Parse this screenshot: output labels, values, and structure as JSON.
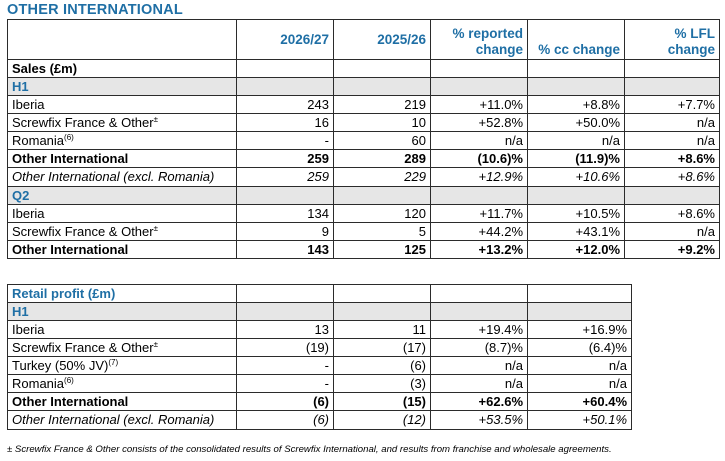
{
  "title": "OTHER INTERNATIONAL",
  "sales": {
    "columns": [
      "2026/27",
      "2025/26",
      "% reported change",
      "% cc change",
      "% LFL change"
    ],
    "caption": "Sales (£m)",
    "h1_label": "H1",
    "h1_rows": [
      {
        "label": "Iberia",
        "sup": "",
        "v": [
          "243",
          "219",
          "+11.0%",
          "+8.8%",
          "+7.7%"
        ]
      },
      {
        "label": "Screwfix France & Other",
        "sup": "±",
        "v": [
          "16",
          "10",
          "+52.8%",
          "+50.0%",
          "n/a"
        ]
      },
      {
        "label": "Romania",
        "sup": "(6)",
        "v": [
          "-",
          "60",
          "n/a",
          "n/a",
          "n/a"
        ]
      },
      {
        "label": "Other International",
        "sup": "",
        "v": [
          "259",
          "289",
          "(10.6)%",
          "(11.9)%",
          "+8.6%"
        ]
      },
      {
        "label": "Other International (excl. Romania)",
        "sup": "",
        "v": [
          "259",
          "229",
          "+12.9%",
          "+10.6%",
          "+8.6%"
        ]
      }
    ],
    "q2_label": "Q2",
    "q2_rows": [
      {
        "label": "Iberia",
        "sup": "",
        "v": [
          "134",
          "120",
          "+11.7%",
          "+10.5%",
          "+8.6%"
        ]
      },
      {
        "label": "Screwfix France & Other",
        "sup": "±",
        "v": [
          "9",
          "5",
          "+44.2%",
          "+43.1%",
          "n/a"
        ]
      },
      {
        "label": "Other International",
        "sup": "",
        "v": [
          "143",
          "125",
          "+13.2%",
          "+12.0%",
          "+9.2%"
        ]
      }
    ]
  },
  "profit": {
    "caption": "Retail profit (£m)",
    "h1_label": "H1",
    "rows": [
      {
        "label": "Iberia",
        "sup": "",
        "v": [
          "13",
          "11",
          "+19.4%",
          "+16.9%"
        ]
      },
      {
        "label": "Screwfix France & Other",
        "sup": "±",
        "v": [
          "(19)",
          "(17)",
          "(8.7)%",
          "(6.4)%"
        ]
      },
      {
        "label": "Turkey (50% JV)",
        "sup": "(7)",
        "v": [
          "-",
          "(6)",
          "n/a",
          "n/a"
        ]
      },
      {
        "label": "Romania",
        "sup": "(6)",
        "v": [
          "-",
          "(3)",
          "n/a",
          "n/a"
        ]
      },
      {
        "label": "Other International",
        "sup": "",
        "v": [
          "(6)",
          "(15)",
          "+62.6%",
          "+60.4%"
        ]
      },
      {
        "label": "Other International (excl. Romania)",
        "sup": "",
        "v": [
          "(6)",
          "(12)",
          "+53.5%",
          "+50.1%"
        ]
      }
    ]
  },
  "footnote": "± Screwfix France & Other consists of the consolidated results of Screwfix International, and results from franchise and wholesale agreements."
}
